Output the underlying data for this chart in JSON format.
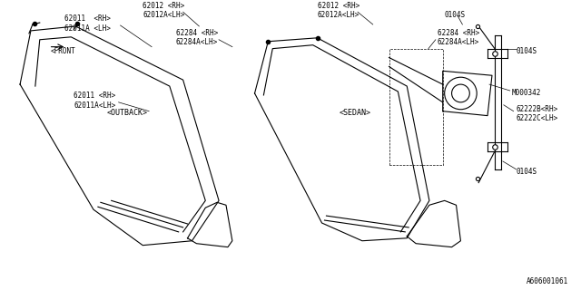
{
  "bg_color": "#ffffff",
  "line_color": "#000000",
  "text_color": "#000000",
  "fig_width": 6.4,
  "fig_height": 3.2,
  "dpi": 100,
  "diagram_id": "A606001061",
  "labels": {
    "outback": "<OUTBACK>",
    "sedan": "<SEDAN>",
    "p62012_top_left": "62012 <RH>\n62012A<LH>",
    "p62011_top_left": "62011  <RH>\n62011A <LH>",
    "p62284_mid_left": "62284 <RH>\n62284A<LH>",
    "p62011_bot_left": "62011 <RH>\n62011A<LH>",
    "p62012_top_right": "62012 <RH>\n62012A<LH>",
    "p62284_top_right": "62284 <RH>\n62284A<LH>",
    "p0104s_top": "0104S",
    "p0104s_mid": "0104S",
    "p0104s_bot": "0104S",
    "p62222b": "62222B<RH>\n62222C<LH>",
    "pM000342": "M000342"
  }
}
